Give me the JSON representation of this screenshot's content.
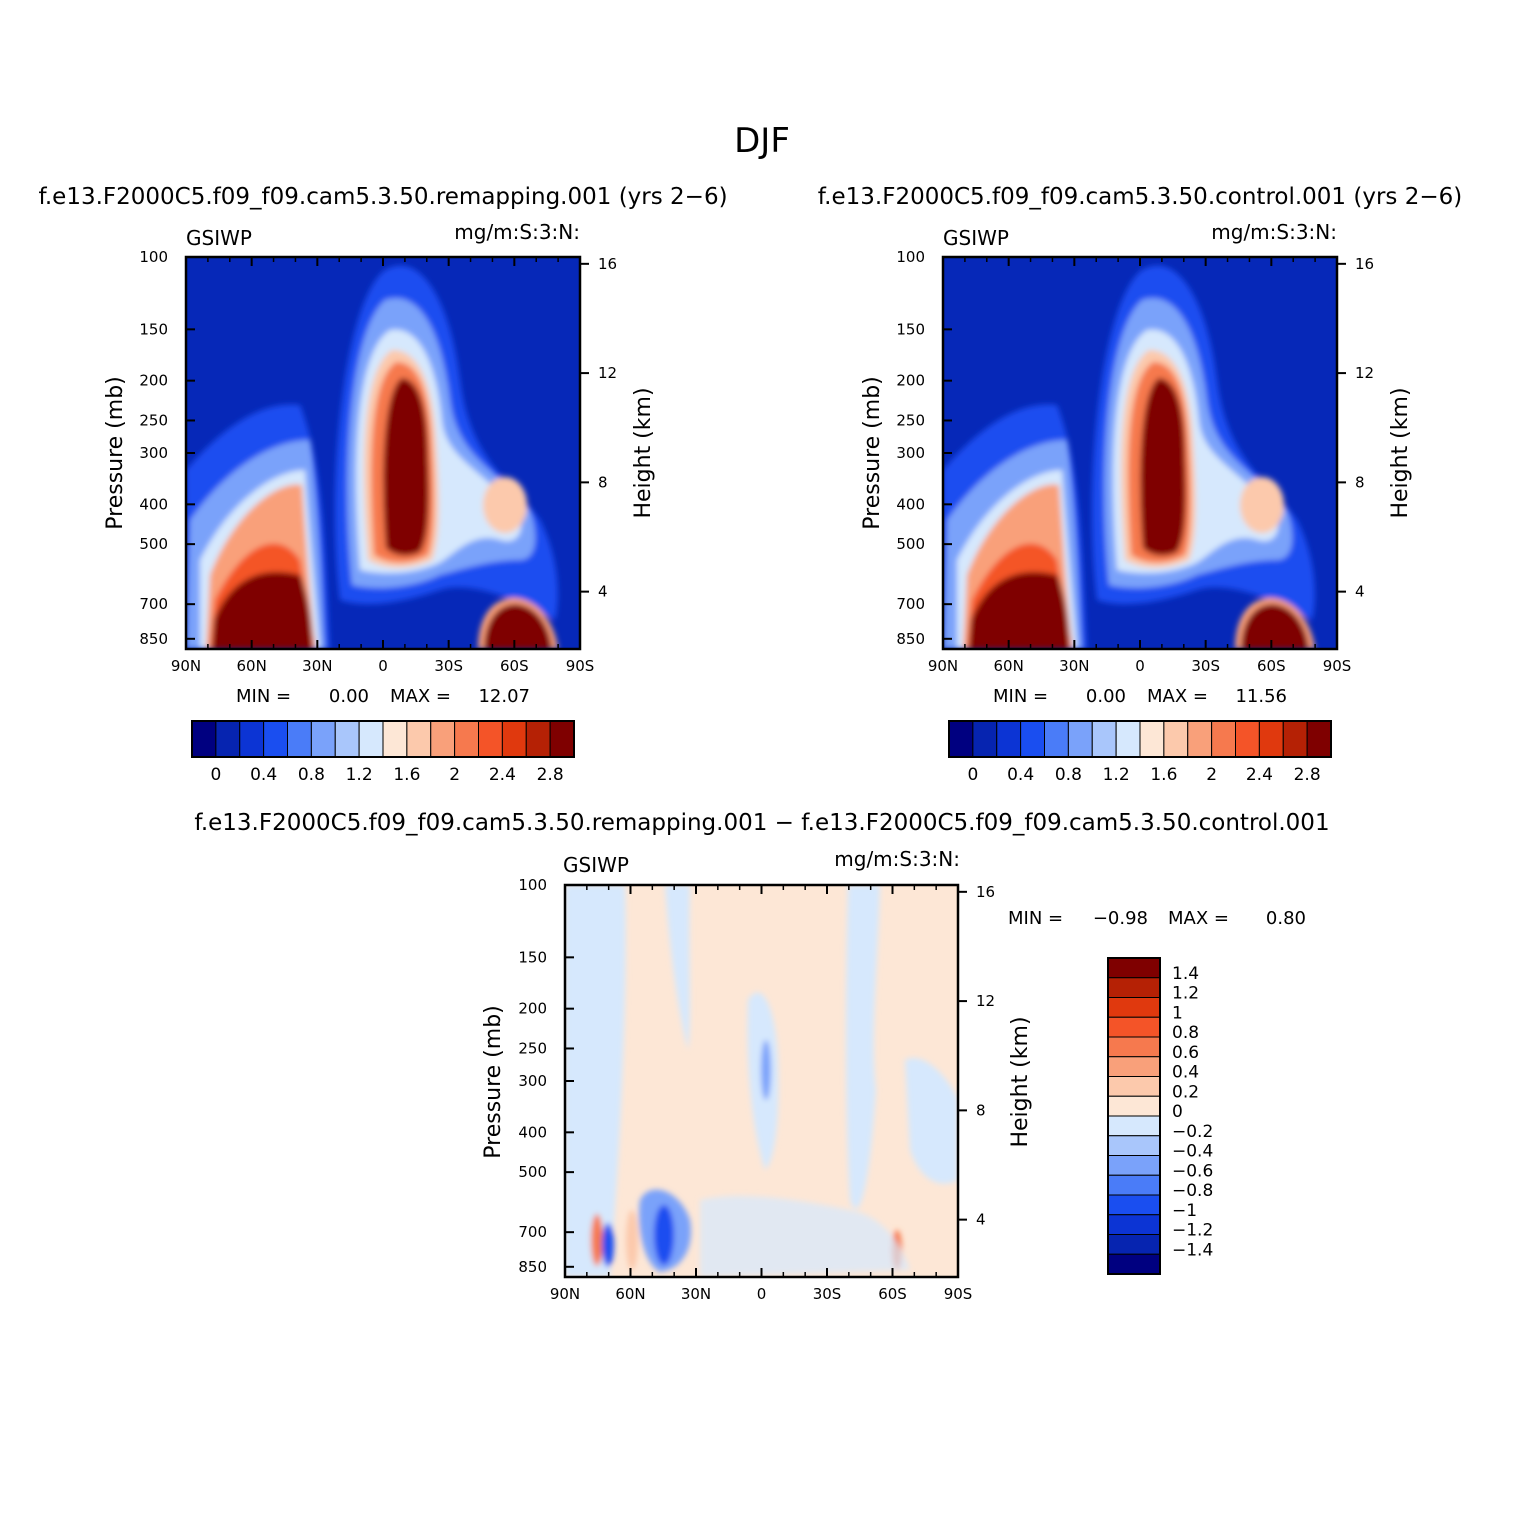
{
  "figure": {
    "main_title": "DJF",
    "color_scale_left": [
      "#000080",
      "#0624b0",
      "#0c34d4",
      "#1a4ef0",
      "#4a7cf8",
      "#7aa2fa",
      "#a9c6fb",
      "#d6e8fd",
      "#fde7d6",
      "#fcc9ac",
      "#f9a07a",
      "#f6794e",
      "#f45428",
      "#e0390e",
      "#b52105",
      "#7f0000"
    ],
    "color_scale_diff": [
      "#000080",
      "#0624b0",
      "#0c34d4",
      "#1a4ef0",
      "#4a7cf8",
      "#7aa2fa",
      "#a9c6fb",
      "#d6e8fd",
      "#fde7d6",
      "#fcc9ac",
      "#f9a07a",
      "#f6794e",
      "#f45428",
      "#e0390e",
      "#b52105",
      "#7f0000"
    ]
  },
  "chart_data": [
    {
      "id": "panel-remapping",
      "type": "heatmap",
      "title": "f.e13.F2000C5.f09_f09.cam5.3.50.remapping.001  (yrs 2−6)",
      "left_corner": "GSIWP",
      "right_corner": "mg/m:S:3:N:",
      "ylabel": "Pressure  (mb)",
      "y2label": "Height  (km)",
      "x_ticks": [
        "90N",
        "60N",
        "30N",
        "0",
        "30S",
        "60S",
        "90S"
      ],
      "y_ticks": [
        "100",
        "150",
        "200",
        "250",
        "300",
        "400",
        "500",
        "700",
        "850"
      ],
      "y_tick_values": [
        100,
        150,
        200,
        250,
        300,
        400,
        500,
        700,
        850
      ],
      "y2_ticks": [
        "16",
        "12",
        "8",
        "4"
      ],
      "y2_tick_values": [
        16,
        12,
        8,
        4
      ],
      "min_label": "MIN =",
      "min_value": "0.00",
      "max_label": "MAX =",
      "max_value": "12.07",
      "colorbar_ticks": [
        "0",
        "0.4",
        "0.8",
        "1.2",
        "1.6",
        "2",
        "2.4",
        "2.8"
      ]
    },
    {
      "id": "panel-control",
      "type": "heatmap",
      "title": "f.e13.F2000C5.f09_f09.cam5.3.50.control.001  (yrs 2−6)",
      "left_corner": "GSIWP",
      "right_corner": "mg/m:S:3:N:",
      "ylabel": "Pressure  (mb)",
      "y2label": "Height  (km)",
      "x_ticks": [
        "90N",
        "60N",
        "30N",
        "0",
        "30S",
        "60S",
        "90S"
      ],
      "y_ticks": [
        "100",
        "150",
        "200",
        "250",
        "300",
        "400",
        "500",
        "700",
        "850"
      ],
      "y_tick_values": [
        100,
        150,
        200,
        250,
        300,
        400,
        500,
        700,
        850
      ],
      "y2_ticks": [
        "16",
        "12",
        "8",
        "4"
      ],
      "y2_tick_values": [
        16,
        12,
        8,
        4
      ],
      "min_label": "MIN =",
      "min_value": "0.00",
      "max_label": "MAX =",
      "max_value": "11.56",
      "colorbar_ticks": [
        "0",
        "0.4",
        "0.8",
        "1.2",
        "1.6",
        "2",
        "2.4",
        "2.8"
      ]
    },
    {
      "id": "panel-difference",
      "type": "heatmap",
      "title": "f.e13.F2000C5.f09_f09.cam5.3.50.remapping.001  −  f.e13.F2000C5.f09_f09.cam5.3.50.control.001",
      "left_corner": "GSIWP",
      "right_corner": "mg/m:S:3:N:",
      "ylabel": "Pressure  (mb)",
      "y2label": "Height  (km)",
      "x_ticks": [
        "90N",
        "60N",
        "30N",
        "0",
        "30S",
        "60S",
        "90S"
      ],
      "y_ticks": [
        "100",
        "150",
        "200",
        "250",
        "300",
        "400",
        "500",
        "700",
        "850"
      ],
      "y_tick_values": [
        100,
        150,
        200,
        250,
        300,
        400,
        500,
        700,
        850
      ],
      "y2_ticks": [
        "16",
        "12",
        "8",
        "4"
      ],
      "y2_tick_values": [
        16,
        12,
        8,
        4
      ],
      "min_label": "MIN =",
      "min_value": "−0.98",
      "max_label": "MAX =",
      "max_value": "0.80",
      "colorbar_ticks": [
        "1.4",
        "1.2",
        "1",
        "0.8",
        "0.6",
        "0.4",
        "0.2",
        "0",
        "−0.2",
        "−0.4",
        "−0.6",
        "−0.8",
        "−1",
        "−1.2",
        "−1.4"
      ]
    }
  ]
}
